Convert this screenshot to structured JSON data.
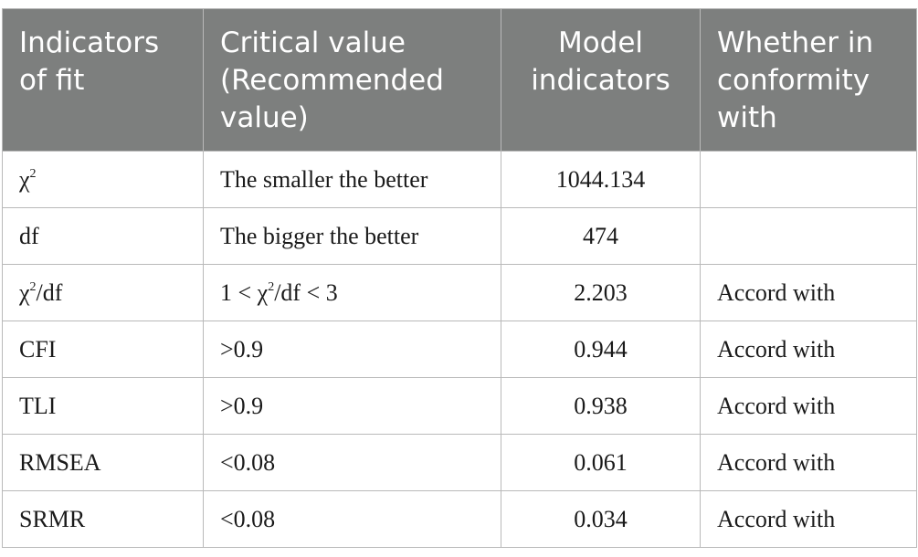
{
  "table": {
    "headers": [
      "Indicators of fit",
      "Critical value (Recommended value)",
      "Model indicators",
      "Whether in conformity with"
    ],
    "rows": [
      {
        "indicator_base": "χ",
        "indicator_sup": "2",
        "indicator_tail": "",
        "critical": "The smaller the better",
        "critical_sup": "",
        "critical_tail": "",
        "critical_tail2": "",
        "model": "1044.134",
        "conformity": ""
      },
      {
        "indicator_base": "df",
        "indicator_sup": "",
        "indicator_tail": "",
        "critical": "The bigger the better",
        "critical_sup": "",
        "critical_tail": "",
        "critical_tail2": "",
        "model": "474",
        "conformity": ""
      },
      {
        "indicator_base": "χ",
        "indicator_sup": "2",
        "indicator_tail": "/df",
        "critical": "1 < χ",
        "critical_sup": "2",
        "critical_tail": "/df < 3",
        "critical_tail2": "",
        "model": "2.203",
        "conformity": "Accord with"
      },
      {
        "indicator_base": "CFI",
        "indicator_sup": "",
        "indicator_tail": "",
        "critical": ">0.9",
        "critical_sup": "",
        "critical_tail": "",
        "critical_tail2": "",
        "model": "0.944",
        "conformity": "Accord with"
      },
      {
        "indicator_base": "TLI",
        "indicator_sup": "",
        "indicator_tail": "",
        "critical": ">0.9",
        "critical_sup": "",
        "critical_tail": "",
        "critical_tail2": "",
        "model": "0.938",
        "conformity": "Accord with"
      },
      {
        "indicator_base": "RMSEA",
        "indicator_sup": "",
        "indicator_tail": "",
        "critical": "<0.08",
        "critical_sup": "",
        "critical_tail": "",
        "critical_tail2": "",
        "model": "0.061",
        "conformity": "Accord with"
      },
      {
        "indicator_base": "SRMR",
        "indicator_sup": "",
        "indicator_tail": "",
        "critical": "<0.08",
        "critical_sup": "",
        "critical_tail": "",
        "critical_tail2": "",
        "model": "0.034",
        "conformity": "Accord with"
      }
    ]
  }
}
